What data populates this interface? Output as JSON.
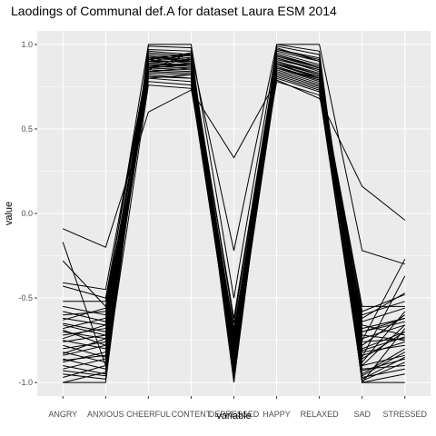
{
  "chart_data": {
    "type": "line",
    "title": "Laodings of Communal def.A for dataset Laura ESM 2014",
    "xlabel": "variable",
    "ylabel": "value",
    "categories": [
      "ANGRY",
      "ANXIOUS",
      "CHEERFUL",
      "CONTENT",
      "DEPRESSED",
      "HAPPY",
      "RELAXED",
      "SAD",
      "STRESSED"
    ],
    "ylim": [
      -1.08,
      1.08
    ],
    "yticks": [
      -1.0,
      -0.5,
      0.0,
      0.5,
      1.0
    ],
    "ytick_labels": [
      "-1.0",
      "-0.5",
      "0.0",
      "0.5",
      "1.0"
    ],
    "grid": true,
    "line_color": "#000000",
    "panel_color": "#ebebeb",
    "gridline_color": "#ffffff",
    "series": [
      {
        "values": [
          -0.09,
          -0.2,
          0.6,
          0.73,
          0.33,
          0.79,
          0.68,
          0.16,
          -0.04
        ]
      },
      {
        "values": [
          -0.17,
          -0.9,
          0.85,
          0.95,
          -0.22,
          1.0,
          1.0,
          -0.22,
          -0.3
        ]
      },
      {
        "values": [
          -0.28,
          -0.55,
          1.0,
          1.0,
          -0.5,
          0.98,
          0.9,
          -0.75,
          -0.27
        ]
      },
      {
        "values": [
          -0.41,
          -0.45,
          0.9,
          0.9,
          -0.62,
          0.94,
          0.86,
          -0.85,
          -0.37
        ]
      },
      {
        "values": [
          -0.43,
          -0.5,
          0.88,
          0.88,
          -0.7,
          0.9,
          0.82,
          -0.62,
          -0.47
        ]
      },
      {
        "values": [
          -0.52,
          -0.52,
          0.92,
          0.94,
          -0.75,
          0.88,
          0.8,
          -0.55,
          -0.55
        ]
      },
      {
        "values": [
          -0.55,
          -0.6,
          0.84,
          0.86,
          -0.8,
          0.86,
          0.78,
          -0.68,
          -0.62
        ]
      },
      {
        "values": [
          -0.6,
          -0.58,
          0.86,
          0.92,
          -0.65,
          0.92,
          0.84,
          -0.8,
          -0.7
        ]
      },
      {
        "values": [
          -0.62,
          -0.66,
          0.8,
          0.82,
          -0.85,
          0.84,
          0.76,
          -0.88,
          -0.58
        ]
      },
      {
        "values": [
          -0.65,
          -0.7,
          0.93,
          0.9,
          -0.72,
          0.95,
          0.88,
          -0.9,
          -0.66
        ]
      },
      {
        "values": [
          -0.68,
          -0.62,
          0.89,
          0.88,
          -0.78,
          0.9,
          0.82,
          -0.72,
          -0.75
        ]
      },
      {
        "values": [
          -0.7,
          -0.74,
          0.82,
          0.8,
          -0.88,
          0.82,
          0.74,
          -0.95,
          -0.8
        ]
      },
      {
        "values": [
          -0.72,
          -0.68,
          0.91,
          0.95,
          -0.82,
          0.93,
          0.86,
          -0.78,
          -0.6
        ]
      },
      {
        "values": [
          -0.75,
          -0.8,
          0.78,
          0.76,
          -0.9,
          0.8,
          0.72,
          -0.98,
          -0.85
        ]
      },
      {
        "values": [
          -0.76,
          -0.72,
          0.87,
          0.86,
          -0.76,
          0.89,
          0.8,
          -0.66,
          -0.72
        ]
      },
      {
        "values": [
          -0.78,
          -0.85,
          0.94,
          0.92,
          -0.92,
          0.96,
          0.9,
          -1.0,
          -0.68
        ]
      },
      {
        "values": [
          -0.8,
          -0.76,
          0.85,
          0.84,
          -0.84,
          0.87,
          0.79,
          -0.82,
          -0.78
        ]
      },
      {
        "values": [
          -0.82,
          -0.88,
          0.9,
          0.94,
          -0.95,
          0.91,
          0.85,
          -0.92,
          -0.9
        ]
      },
      {
        "values": [
          -0.84,
          -0.78,
          0.83,
          0.82,
          -0.7,
          0.85,
          0.77,
          -0.7,
          -0.64
        ]
      },
      {
        "values": [
          -0.86,
          -0.92,
          0.92,
          0.9,
          -0.98,
          0.94,
          0.87,
          -0.96,
          -0.82
        ]
      },
      {
        "values": [
          -0.88,
          -0.82,
          0.88,
          0.87,
          -0.86,
          0.88,
          0.81,
          -0.76,
          -0.74
        ]
      },
      {
        "values": [
          -0.9,
          -0.95,
          0.95,
          0.93,
          -1.0,
          0.97,
          0.92,
          -1.0,
          -0.95
        ]
      },
      {
        "values": [
          -0.92,
          -0.86,
          0.81,
          0.8,
          -0.8,
          0.83,
          0.75,
          -0.86,
          -0.7
        ]
      },
      {
        "values": [
          -0.95,
          -0.98,
          0.97,
          0.96,
          -0.96,
          0.99,
          0.94,
          -0.99,
          -0.88
        ]
      },
      {
        "values": [
          -0.97,
          -0.9,
          0.86,
          0.85,
          -0.88,
          0.86,
          0.8,
          -0.84,
          -0.76
        ]
      },
      {
        "values": [
          -1.0,
          -1.0,
          0.99,
          0.98,
          -0.94,
          1.0,
          0.96,
          -1.0,
          -1.0
        ]
      },
      {
        "values": [
          -1.0,
          -0.94,
          0.76,
          0.74,
          -0.68,
          0.78,
          0.7,
          -0.6,
          -0.52
        ]
      },
      {
        "values": [
          -0.58,
          -0.64,
          0.89,
          0.91,
          -0.73,
          0.92,
          0.85,
          -0.74,
          -0.66
        ]
      },
      {
        "values": [
          -0.66,
          -0.72,
          0.84,
          0.83,
          -0.82,
          0.86,
          0.79,
          -0.9,
          -0.84
        ]
      },
      {
        "values": [
          -0.74,
          -0.66,
          0.91,
          0.89,
          -0.77,
          0.9,
          0.83,
          -0.64,
          -0.56
        ]
      },
      {
        "values": [
          -0.83,
          -0.74,
          0.87,
          0.89,
          -0.87,
          0.89,
          0.82,
          -0.81,
          -0.73
        ]
      },
      {
        "values": [
          -0.69,
          -0.78,
          0.8,
          0.78,
          -0.91,
          0.81,
          0.73,
          -0.93,
          -0.86
        ]
      },
      {
        "values": [
          -0.87,
          -0.84,
          0.93,
          0.91,
          -0.79,
          0.93,
          0.86,
          -0.7,
          -0.62
        ]
      },
      {
        "values": [
          -0.63,
          -0.56,
          0.86,
          0.88,
          -0.74,
          0.88,
          0.81,
          -0.58,
          -0.48
        ]
      },
      {
        "values": [
          -0.93,
          -0.96,
          0.96,
          0.94,
          -0.97,
          0.97,
          0.91,
          -0.97,
          -0.92
        ]
      }
    ]
  }
}
